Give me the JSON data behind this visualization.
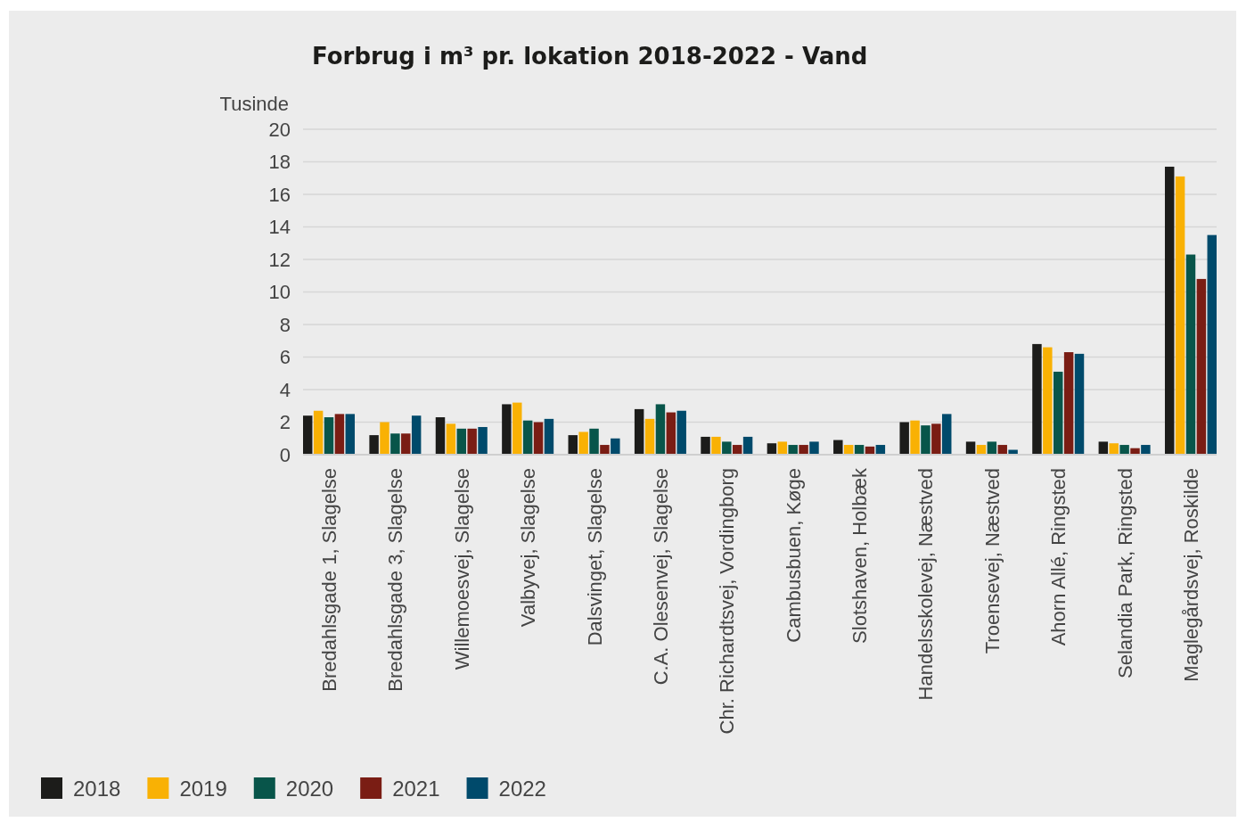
{
  "chart_data": {
    "type": "bar",
    "title": "Forbrug i m³ pr. lokation 2018-2022 - Vand",
    "ylabel": "Tusinde",
    "categories": [
      "Bredahlsgade 1, Slagelse",
      "Bredahlsgade 3, Slagelse",
      "Willemoesvej, Slagelse",
      "Valbyvej, Slagelse",
      "Dalsvinget, Slagelse",
      "C.A. Olesenvej, Slagelse",
      "Chr. Richardtsvej, Vordingborg",
      "Cambusbuen, Køge",
      "Slotshaven, Holbæk",
      "Handelsskolevej, Næstved",
      "Troensevej, Næstved",
      "Ahorn Allé, Ringsted",
      "Selandia Park, Ringsted",
      "Maglegårdsvej, Roskilde"
    ],
    "series": [
      {
        "name": "2018",
        "color": "#1c1c1a",
        "values": [
          2.4,
          1.2,
          2.3,
          3.1,
          1.2,
          2.8,
          1.1,
          0.7,
          0.9,
          2.0,
          0.8,
          6.8,
          0.8,
          17.7
        ]
      },
      {
        "name": "2019",
        "color": "#f9b104",
        "values": [
          2.7,
          2.0,
          1.9,
          3.2,
          1.4,
          2.2,
          1.1,
          0.8,
          0.6,
          2.1,
          0.6,
          6.6,
          0.7,
          17.1
        ]
      },
      {
        "name": "2020",
        "color": "#08554a",
        "values": [
          2.3,
          1.3,
          1.6,
          2.1,
          1.6,
          3.1,
          0.8,
          0.6,
          0.6,
          1.8,
          0.8,
          5.1,
          0.6,
          12.3
        ]
      },
      {
        "name": "2021",
        "color": "#7a1d14",
        "values": [
          2.5,
          1.3,
          1.6,
          2.0,
          0.6,
          2.6,
          0.6,
          0.6,
          0.5,
          1.9,
          0.6,
          6.3,
          0.4,
          10.8
        ]
      },
      {
        "name": "2022",
        "color": "#004a6b",
        "values": [
          2.5,
          2.4,
          1.7,
          2.2,
          1.0,
          2.7,
          1.1,
          0.8,
          0.6,
          2.5,
          0.3,
          6.2,
          0.6,
          13.5
        ]
      }
    ],
    "ylim": [
      0,
      20
    ],
    "yticks": [
      0,
      2,
      4,
      6,
      8,
      10,
      12,
      14,
      16,
      18,
      20
    ],
    "grid": "y",
    "legend": "bottom"
  }
}
